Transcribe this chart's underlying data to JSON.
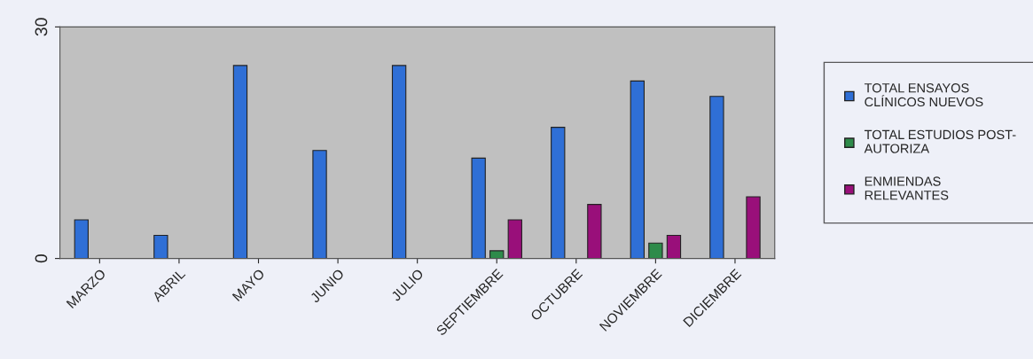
{
  "chart_data": {
    "type": "bar",
    "categories": [
      "MARZO",
      "ABRIL",
      "MAYO",
      "JUNIO",
      "JULIO",
      "SEPTIEMBRE",
      "OCTUBRE",
      "NOVIEMBRE",
      "DICIEMBRE"
    ],
    "series": [
      {
        "name": "TOTAL ENSAYOS\nCLÍNICOS NUEVOS",
        "color": "#2f6fd6",
        "values": [
          5,
          3,
          25,
          14,
          25,
          13,
          17,
          23,
          21
        ]
      },
      {
        "name": "TOTAL ESTUDIOS POST-\nAUTORIZA",
        "color": "#2e8b4a",
        "values": [
          null,
          null,
          null,
          null,
          null,
          1,
          null,
          2,
          null
        ]
      },
      {
        "name": "ENMIENDAS\nRELEVANTES",
        "color": "#990f7a",
        "values": [
          null,
          null,
          null,
          null,
          null,
          5,
          7,
          3,
          8
        ]
      }
    ],
    "ylim": [
      0,
      30
    ],
    "yticks": [
      0,
      30
    ],
    "grid": false,
    "legend": "right"
  }
}
